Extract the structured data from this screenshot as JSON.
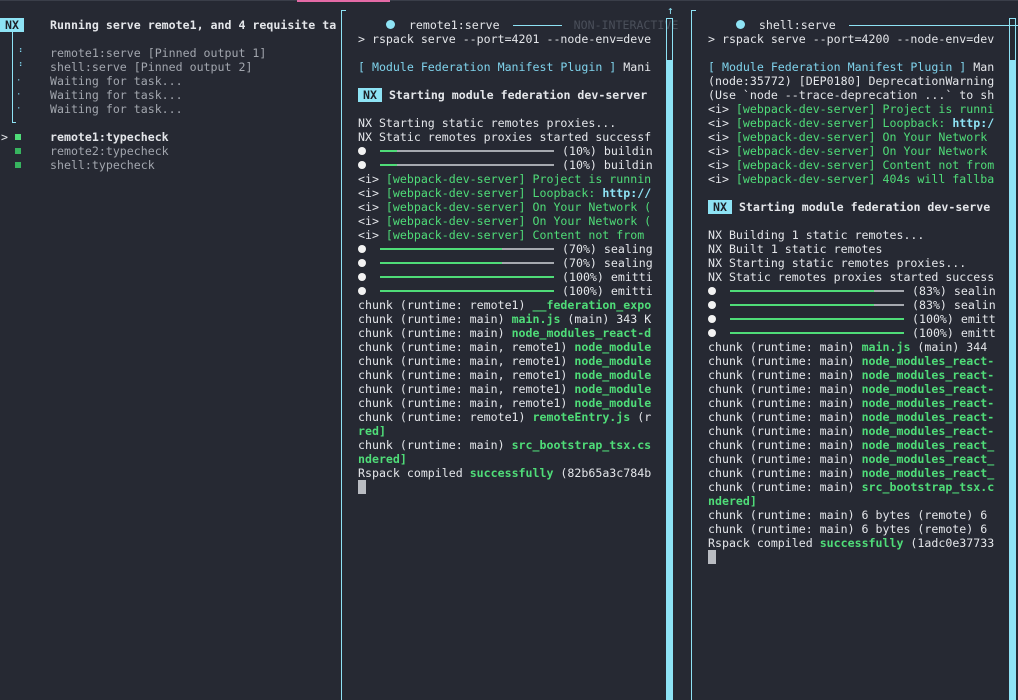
{
  "colors": {
    "accent": "#8ee3f5",
    "success": "#4fdc78",
    "background": "#262933",
    "highlight": "#e46aa6"
  },
  "sidebar": {
    "badge": "NX",
    "title": "Running serve remote1, and 4 requisite ta",
    "pinned": [
      {
        "icon": "pinned-dots-icon",
        "glyph": "⠘",
        "label": "remote1:serve [Pinned output 1]"
      },
      {
        "icon": "pinned-dots-icon",
        "glyph": "⠘",
        "label": "shell:serve [Pinned output 2]"
      },
      {
        "icon": "waiting-dot-icon",
        "glyph": "·",
        "label": "Waiting for task..."
      },
      {
        "icon": "waiting-dot-icon",
        "glyph": "·",
        "label": "Waiting for task..."
      },
      {
        "icon": "waiting-dot-icon",
        "glyph": "·",
        "label": "Waiting for task..."
      }
    ],
    "selector": ">",
    "tasks": [
      {
        "label": "remote1:typecheck",
        "selected": true,
        "status": "success"
      },
      {
        "label": "remote2:typecheck",
        "selected": false,
        "status": "success"
      },
      {
        "label": "shell:typecheck",
        "selected": false,
        "status": "success"
      }
    ]
  },
  "pane1": {
    "title": "remote1:serve",
    "mode": "NON-INTERACTIVE",
    "scroll_arrow": "↑",
    "lines": [
      [
        {
          "t": "> rspack serve --port=4201 --node-env=deve",
          "c": "white"
        }
      ],
      [],
      [
        {
          "t": "[ Module Federation Manifest Plugin ]",
          "c": "cyan"
        },
        {
          "t": " Mani",
          "c": "white"
        }
      ],
      [],
      [
        {
          "t": "NX",
          "c": "nxbadge"
        },
        {
          "t": " Starting module federation dev-server",
          "c": "bold"
        }
      ],
      [],
      [
        {
          "t": "NX Starting static remotes proxies...",
          "c": "white"
        }
      ],
      [
        {
          "t": "NX Static remotes proxies started successf",
          "c": "white"
        }
      ],
      [
        {
          "bar": 0.1
        },
        {
          "t": "(10%) buildin",
          "c": "white"
        }
      ],
      [
        {
          "bar": 0.1
        },
        {
          "t": "(10%) buildin",
          "c": "white"
        }
      ],
      [
        {
          "t": "<i> ",
          "c": "white"
        },
        {
          "t": "[webpack-dev-server] Project is runnin",
          "c": "green"
        }
      ],
      [
        {
          "t": "<i> ",
          "c": "white"
        },
        {
          "t": "[webpack-dev-server] Loopback: ",
          "c": "green"
        },
        {
          "t": "http://",
          "c": "link"
        }
      ],
      [
        {
          "t": "<i> ",
          "c": "white"
        },
        {
          "t": "[webpack-dev-server] On Your Network (",
          "c": "green"
        }
      ],
      [
        {
          "t": "<i> ",
          "c": "white"
        },
        {
          "t": "[webpack-dev-server] On Your Network (",
          "c": "green"
        }
      ],
      [
        {
          "t": "<i> ",
          "c": "white"
        },
        {
          "t": "[webpack-dev-server] Content not from",
          "c": "green"
        }
      ],
      [
        {
          "bar": 0.7
        },
        {
          "t": "(70%) sealing",
          "c": "white"
        }
      ],
      [
        {
          "bar": 0.7
        },
        {
          "t": "(70%) sealing",
          "c": "white"
        }
      ],
      [
        {
          "bar": 1.0
        },
        {
          "t": "(100%) emitti",
          "c": "white"
        }
      ],
      [
        {
          "bar": 1.0
        },
        {
          "t": "(100%) emitti",
          "c": "white"
        }
      ],
      [
        {
          "t": "chunk (runtime: remote1) ",
          "c": "white"
        },
        {
          "t": "__federation_expo",
          "c": "gbold"
        }
      ],
      [
        {
          "t": "chunk (runtime: main) ",
          "c": "white"
        },
        {
          "t": "main.js",
          "c": "gbold"
        },
        {
          "t": " (main) 343 K",
          "c": "white"
        }
      ],
      [
        {
          "t": "chunk (runtime: main) ",
          "c": "white"
        },
        {
          "t": "node_modules_react-d",
          "c": "gbold"
        }
      ],
      [
        {
          "t": "chunk (runtime: main, remote1) ",
          "c": "white"
        },
        {
          "t": "node_module",
          "c": "gbold"
        }
      ],
      [
        {
          "t": "chunk (runtime: main, remote1) ",
          "c": "white"
        },
        {
          "t": "node_module",
          "c": "gbold"
        }
      ],
      [
        {
          "t": "chunk (runtime: main, remote1) ",
          "c": "white"
        },
        {
          "t": "node_module",
          "c": "gbold"
        }
      ],
      [
        {
          "t": "chunk (runtime: main, remote1) ",
          "c": "white"
        },
        {
          "t": "node_module",
          "c": "gbold"
        }
      ],
      [
        {
          "t": "chunk (runtime: main, remote1) ",
          "c": "white"
        },
        {
          "t": "node_module",
          "c": "gbold"
        }
      ],
      [
        {
          "t": "chunk (runtime: remote1) ",
          "c": "white"
        },
        {
          "t": "remoteEntry.js",
          "c": "gbold"
        },
        {
          "t": " (r",
          "c": "white"
        }
      ],
      [
        {
          "t": "red]",
          "c": "gbold"
        }
      ],
      [
        {
          "t": "chunk (runtime: main) ",
          "c": "white"
        },
        {
          "t": "src_bootstrap_tsx.cs",
          "c": "gbold"
        }
      ],
      [
        {
          "t": "ndered]",
          "c": "gbold"
        }
      ],
      [
        {
          "t": "Rspack compiled ",
          "c": "white"
        },
        {
          "t": "successfully",
          "c": "gbold"
        },
        {
          "t": " (82b65a3c784b",
          "c": "white"
        }
      ],
      [
        {
          "cursor": true
        }
      ]
    ]
  },
  "pane2": {
    "title": "shell:serve",
    "scroll_arrow": "↑",
    "lines": [
      [
        {
          "t": "> rspack serve --port=4200 --node-env=dev",
          "c": "white"
        }
      ],
      [],
      [
        {
          "t": "[ Module Federation Manifest Plugin ]",
          "c": "cyan"
        },
        {
          "t": " Man",
          "c": "white"
        }
      ],
      [
        {
          "t": "(node:35772) [DEP0180] DeprecationWarning",
          "c": "white"
        }
      ],
      [
        {
          "t": "(Use `node --trace-deprecation ...` to sh",
          "c": "white"
        }
      ],
      [
        {
          "t": "<i> ",
          "c": "white"
        },
        {
          "t": "[webpack-dev-server] Project is runni",
          "c": "green"
        }
      ],
      [
        {
          "t": "<i> ",
          "c": "white"
        },
        {
          "t": "[webpack-dev-server] Loopback: ",
          "c": "green"
        },
        {
          "t": "http:/",
          "c": "link"
        }
      ],
      [
        {
          "t": "<i> ",
          "c": "white"
        },
        {
          "t": "[webpack-dev-server] On Your Network",
          "c": "green"
        }
      ],
      [
        {
          "t": "<i> ",
          "c": "white"
        },
        {
          "t": "[webpack-dev-server] On Your Network",
          "c": "green"
        }
      ],
      [
        {
          "t": "<i> ",
          "c": "white"
        },
        {
          "t": "[webpack-dev-server] Content not from",
          "c": "green"
        }
      ],
      [
        {
          "t": "<i> ",
          "c": "white"
        },
        {
          "t": "[webpack-dev-server] 404s will fallba",
          "c": "green"
        }
      ],
      [],
      [
        {
          "t": "NX",
          "c": "nxbadge"
        },
        {
          "t": " Starting module federation dev-serve",
          "c": "bold"
        }
      ],
      [],
      [
        {
          "t": "NX Building 1 static remotes...",
          "c": "white"
        }
      ],
      [
        {
          "t": "NX Built 1 static remotes",
          "c": "white"
        }
      ],
      [
        {
          "t": "NX Starting static remotes proxies...",
          "c": "white"
        }
      ],
      [
        {
          "t": "NX Static remotes proxies started success",
          "c": "white"
        }
      ],
      [
        {
          "bar": 0.83
        },
        {
          "t": "(83%) sealin",
          "c": "white"
        }
      ],
      [
        {
          "bar": 0.83
        },
        {
          "t": "(83%) sealin",
          "c": "white"
        }
      ],
      [
        {
          "bar": 1.0
        },
        {
          "t": "(100%) emitt",
          "c": "white"
        }
      ],
      [
        {
          "bar": 1.0
        },
        {
          "t": "(100%) emitt",
          "c": "white"
        }
      ],
      [
        {
          "t": "chunk (runtime: main) ",
          "c": "white"
        },
        {
          "t": "main.js",
          "c": "gbold"
        },
        {
          "t": " (main) 344",
          "c": "white"
        }
      ],
      [
        {
          "t": "chunk (runtime: main) ",
          "c": "white"
        },
        {
          "t": "node_modules_react-",
          "c": "gbold"
        }
      ],
      [
        {
          "t": "chunk (runtime: main) ",
          "c": "white"
        },
        {
          "t": "node_modules_react-",
          "c": "gbold"
        }
      ],
      [
        {
          "t": "chunk (runtime: main) ",
          "c": "white"
        },
        {
          "t": "node_modules_react-",
          "c": "gbold"
        }
      ],
      [
        {
          "t": "chunk (runtime: main) ",
          "c": "white"
        },
        {
          "t": "node_modules_react-",
          "c": "gbold"
        }
      ],
      [
        {
          "t": "chunk (runtime: main) ",
          "c": "white"
        },
        {
          "t": "node_modules_react-",
          "c": "gbold"
        }
      ],
      [
        {
          "t": "chunk (runtime: main) ",
          "c": "white"
        },
        {
          "t": "node_modules_react-",
          "c": "gbold"
        }
      ],
      [
        {
          "t": "chunk (runtime: main) ",
          "c": "white"
        },
        {
          "t": "node_modules_react_",
          "c": "gbold"
        }
      ],
      [
        {
          "t": "chunk (runtime: main) ",
          "c": "white"
        },
        {
          "t": "node_modules_react_",
          "c": "gbold"
        }
      ],
      [
        {
          "t": "chunk (runtime: main) ",
          "c": "white"
        },
        {
          "t": "node_modules_react_",
          "c": "gbold"
        }
      ],
      [
        {
          "t": "chunk (runtime: main) ",
          "c": "white"
        },
        {
          "t": "src_bootstrap_tsx.c",
          "c": "gbold"
        }
      ],
      [
        {
          "t": "ndered]",
          "c": "gbold"
        }
      ],
      [
        {
          "t": "chunk (runtime: main) 6 bytes (remote) 6",
          "c": "white"
        }
      ],
      [
        {
          "t": "chunk (runtime: main) 6 bytes (remote) 6",
          "c": "white"
        }
      ],
      [
        {
          "t": "Rspack compiled ",
          "c": "white"
        },
        {
          "t": "successfully",
          "c": "gbold"
        },
        {
          "t": " (1adc0e37733",
          "c": "white"
        }
      ],
      [
        {
          "cursor": true
        }
      ]
    ]
  }
}
